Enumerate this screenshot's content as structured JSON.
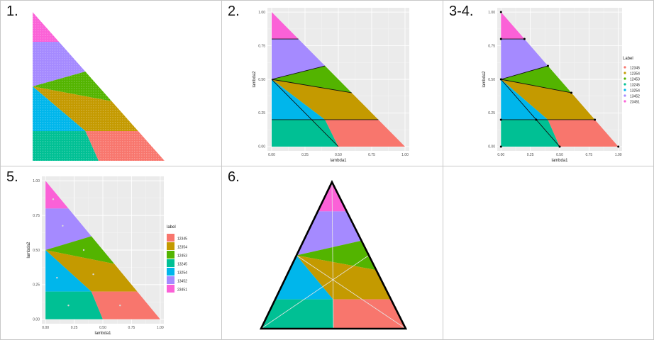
{
  "panels": [
    {
      "number": "1."
    },
    {
      "number": "2."
    },
    {
      "number": "3-4."
    },
    {
      "number": "5."
    },
    {
      "number": "6."
    }
  ],
  "colors": {
    "12345": "#F8766D",
    "12354": "#C49A00",
    "12453": "#53B400",
    "13245": "#00C094",
    "13254": "#00B6EB",
    "13452": "#A58AFF",
    "23451": "#FB61D7",
    "panel_bg": "#EBEBEB",
    "grid": "#FFFFFF"
  },
  "chart_data": [
    {
      "type": "scatter",
      "description_panel": "1.",
      "regions": [
        {
          "label": "23451",
          "vertices": [
            [
              0,
              1
            ],
            [
              0,
              0.8
            ],
            [
              0.2,
              0.8
            ]
          ]
        },
        {
          "label": "13452",
          "vertices": [
            [
              0,
              0.8
            ],
            [
              0,
              0.5
            ],
            [
              0.4,
              0.6
            ],
            [
              0.2,
              0.8
            ]
          ]
        },
        {
          "label": "12453",
          "vertices": [
            [
              0,
              0.5
            ],
            [
              0.4,
              0.6
            ],
            [
              0.5,
              0.5
            ],
            [
              0.6,
              0.4
            ]
          ]
        },
        {
          "label": "12354",
          "vertices": [
            [
              0,
              0.5
            ],
            [
              0.6,
              0.4
            ],
            [
              0.8,
              0.2
            ],
            [
              0.4,
              0.2
            ]
          ]
        },
        {
          "label": "13254",
          "vertices": [
            [
              0,
              0.5
            ],
            [
              0.4,
              0.2
            ],
            [
              0,
              0.2
            ]
          ]
        },
        {
          "label": "13245",
          "vertices": [
            [
              0,
              0.2
            ],
            [
              0.4,
              0.2
            ],
            [
              0.5,
              0
            ],
            [
              0,
              0
            ]
          ]
        },
        {
          "label": "12345",
          "vertices": [
            [
              0.4,
              0.2
            ],
            [
              0.8,
              0.2
            ],
            [
              1,
              0
            ],
            [
              0.5,
              0
            ]
          ]
        }
      ]
    },
    {
      "type": "area",
      "description_panel": "2.",
      "xlabel": "lambda1",
      "ylabel": "lambda2",
      "xlim": [
        0,
        1
      ],
      "ylim": [
        0,
        1
      ],
      "xticks": [
        "0.00",
        "0.25",
        "0.50",
        "0.75",
        "1.00"
      ],
      "yticks": [
        "0.00",
        "0.25",
        "0.50",
        "0.75",
        "1.00"
      ],
      "grid": true,
      "boundaries": [
        [
          [
            0,
            0.8
          ],
          [
            0.2,
            0.8
          ]
        ],
        [
          [
            0,
            0.5
          ],
          [
            0.4,
            0.6
          ]
        ],
        [
          [
            0,
            0.5
          ],
          [
            0.6,
            0.4
          ]
        ],
        [
          [
            0,
            0.5
          ],
          [
            0.5,
            0
          ]
        ],
        [
          [
            0,
            0.2
          ],
          [
            0.8,
            0.2
          ]
        ]
      ]
    },
    {
      "type": "area",
      "description_panel": "3-4.",
      "xlabel": "lambda1",
      "ylabel": "lambda2",
      "legend_title": "Label",
      "legend_position": "right",
      "legend": [
        "12345",
        "12354",
        "12453",
        "13245",
        "13254",
        "13452",
        "23451"
      ],
      "xticks": [
        "0.00",
        "0.25",
        "0.50",
        "0.75",
        "1.00"
      ],
      "yticks": [
        "0.00",
        "0.25",
        "0.50",
        "0.75",
        "1.00"
      ],
      "points": [
        [
          0,
          1
        ],
        [
          0,
          0.8
        ],
        [
          0.2,
          0.8
        ],
        [
          0.4,
          0.6
        ],
        [
          0.6,
          0.4
        ],
        [
          0.8,
          0.2
        ],
        [
          1,
          0
        ],
        [
          0.5,
          0
        ],
        [
          0,
          0
        ],
        [
          0,
          0.2
        ],
        [
          0.3,
          0.2
        ],
        [
          0,
          0.5
        ]
      ]
    },
    {
      "type": "area",
      "description_panel": "5.",
      "xlabel": "lambda1",
      "ylabel": "lambda2",
      "legend_title": "label",
      "legend_position": "right",
      "legend": [
        "12345",
        "12354",
        "12453",
        "13245",
        "13254",
        "13452",
        "23451"
      ],
      "xticks": [
        "0.00",
        "0.25",
        "0.50",
        "0.75",
        "1.00"
      ],
      "yticks": [
        "0.00",
        "0.25",
        "0.50",
        "0.75",
        "1.00"
      ],
      "centroids": [
        {
          "label": "23451",
          "x": 0.067,
          "y": 0.867
        },
        {
          "label": "13452",
          "x": 0.15,
          "y": 0.675
        },
        {
          "label": "12453",
          "x": 0.333,
          "y": 0.5
        },
        {
          "label": "12354",
          "x": 0.417,
          "y": 0.325
        },
        {
          "label": "13254",
          "x": 0.1,
          "y": 0.3
        },
        {
          "label": "13245",
          "x": 0.2,
          "y": 0.1
        },
        {
          "label": "12345",
          "x": 0.65,
          "y": 0.1
        }
      ]
    },
    {
      "type": "area",
      "description_panel": "6.",
      "shape": "equilateral triangle"
    }
  ]
}
